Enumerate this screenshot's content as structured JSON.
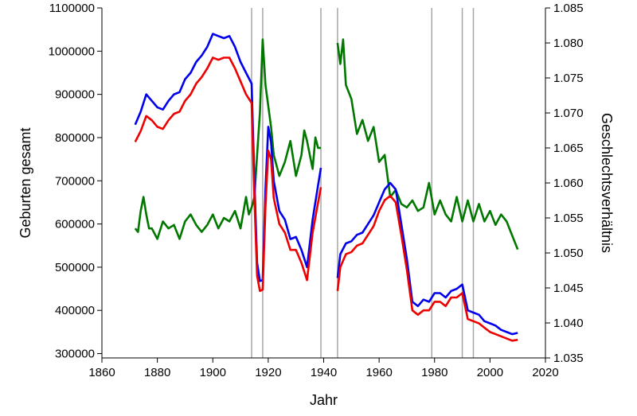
{
  "chart_data": {
    "type": "line",
    "title": "",
    "xlabel": "Jahr",
    "ylabel_left": "Geburten gesamt",
    "ylabel_right": "Geschlechtsverhältnis",
    "xlim": [
      1860,
      2020
    ],
    "ylim_left": [
      290000,
      1100000
    ],
    "ylim_right": [
      1.035,
      1.085
    ],
    "x_ticks": [
      "1860",
      "1880",
      "1900",
      "1920",
      "1940",
      "1960",
      "1980",
      "2000",
      "2020"
    ],
    "y_ticks_left": [
      "300000",
      "400000",
      "500000",
      "600000",
      "700000",
      "800000",
      "900000",
      "1000000",
      "1100000"
    ],
    "y_ticks_right": [
      "1.035",
      "1.040",
      "1.045",
      "1.050",
      "1.055",
      "1.060",
      "1.065",
      "1.070",
      "1.075",
      "1.080",
      "1.085"
    ],
    "vertical_lines": [
      1914,
      1918,
      1939,
      1945,
      1979,
      1990,
      1994
    ],
    "grid": false,
    "legend": "none",
    "colors": {
      "male": "#0000ee",
      "female": "#ee0000",
      "ratio": "#007800",
      "reference": "#a6a6a6"
    },
    "series": [
      {
        "axis": "left",
        "color": "#0000ee",
        "x": [
          1872,
          1874,
          1876,
          1878,
          1880,
          1882,
          1884,
          1886,
          1888,
          1890,
          1892,
          1894,
          1896,
          1898,
          1900,
          1902,
          1904,
          1906,
          1908,
          1910,
          1912,
          1914,
          1915,
          1916,
          1917,
          1918,
          1919,
          1920,
          1921,
          1922,
          1924,
          1926,
          1928,
          1930,
          1932,
          1934,
          1936,
          1938,
          1939,
          1945,
          1946,
          1948,
          1950,
          1952,
          1954,
          1956,
          1958,
          1960,
          1962,
          1964,
          1966,
          1968,
          1970,
          1972,
          1974,
          1976,
          1978,
          1980,
          1982,
          1984,
          1986,
          1988,
          1990,
          1992,
          1994,
          1996,
          1998,
          2000,
          2002,
          2004,
          2006,
          2008,
          2010
        ],
        "values": [
          830000,
          860000,
          900000,
          885000,
          870000,
          865000,
          885000,
          900000,
          905000,
          935000,
          950000,
          975000,
          990000,
          1010000,
          1040000,
          1035000,
          1030000,
          1035000,
          1010000,
          975000,
          950000,
          925000,
          700000,
          510000,
          468000,
          470000,
          680000,
          825000,
          790000,
          700000,
          630000,
          610000,
          565000,
          570000,
          540000,
          500000,
          610000,
          690000,
          730000,
          475000,
          530000,
          555000,
          560000,
          575000,
          580000,
          600000,
          620000,
          650000,
          680000,
          695000,
          680000,
          600000,
          520000,
          420000,
          410000,
          425000,
          420000,
          440000,
          440000,
          430000,
          445000,
          450000,
          460000,
          400000,
          395000,
          390000,
          375000,
          370000,
          365000,
          355000,
          350000,
          345000,
          348000
        ]
      },
      {
        "axis": "left",
        "color": "#ee0000",
        "x": [
          1872,
          1874,
          1876,
          1878,
          1880,
          1882,
          1884,
          1886,
          1888,
          1890,
          1892,
          1894,
          1896,
          1898,
          1900,
          1902,
          1904,
          1906,
          1908,
          1910,
          1912,
          1914,
          1915,
          1916,
          1917,
          1918,
          1919,
          1920,
          1921,
          1922,
          1924,
          1926,
          1928,
          1930,
          1932,
          1934,
          1936,
          1938,
          1939,
          1945,
          1946,
          1948,
          1950,
          1952,
          1954,
          1956,
          1958,
          1960,
          1962,
          1964,
          1966,
          1968,
          1970,
          1972,
          1974,
          1976,
          1978,
          1980,
          1982,
          1984,
          1986,
          1988,
          1990,
          1992,
          1994,
          1996,
          1998,
          2000,
          2002,
          2004,
          2006,
          2008,
          2010
        ],
        "values": [
          790000,
          815000,
          850000,
          840000,
          825000,
          820000,
          840000,
          855000,
          860000,
          885000,
          900000,
          925000,
          940000,
          960000,
          985000,
          980000,
          985000,
          985000,
          960000,
          930000,
          900000,
          880000,
          660000,
          480000,
          445000,
          448000,
          640000,
          770000,
          750000,
          660000,
          600000,
          580000,
          540000,
          540000,
          510000,
          470000,
          580000,
          650000,
          685000,
          445000,
          500000,
          530000,
          535000,
          550000,
          555000,
          575000,
          595000,
          630000,
          655000,
          665000,
          650000,
          575000,
          495000,
          400000,
          390000,
          400000,
          400000,
          420000,
          420000,
          410000,
          430000,
          430000,
          440000,
          380000,
          375000,
          370000,
          360000,
          350000,
          345000,
          340000,
          335000,
          330000,
          332000
        ]
      },
      {
        "axis": "right",
        "color": "#007800",
        "x": [
          1872,
          1873,
          1874,
          1875,
          1876,
          1877,
          1878,
          1880,
          1882,
          1884,
          1886,
          1888,
          1890,
          1892,
          1894,
          1896,
          1898,
          1900,
          1902,
          1904,
          1906,
          1908,
          1910,
          1912,
          1913,
          1914,
          1915,
          1916,
          1917,
          1918,
          1919,
          1920,
          1921,
          1922,
          1924,
          1926,
          1928,
          1930,
          1932,
          1933,
          1934,
          1936,
          1937,
          1938,
          1939,
          1945,
          1946,
          1947,
          1948,
          1950,
          1952,
          1954,
          1956,
          1958,
          1960,
          1962,
          1964,
          1966,
          1968,
          1970,
          1972,
          1974,
          1976,
          1978,
          1980,
          1982,
          1984,
          1986,
          1988,
          1990,
          1992,
          1994,
          1996,
          1998,
          2000,
          2002,
          2004,
          2006,
          2008,
          2010
        ],
        "values": [
          1.0535,
          1.053,
          1.056,
          1.058,
          1.0555,
          1.0535,
          1.0535,
          1.052,
          1.0545,
          1.0535,
          1.054,
          1.052,
          1.0545,
          1.0555,
          1.054,
          1.053,
          1.054,
          1.0555,
          1.0535,
          1.055,
          1.0545,
          1.056,
          1.0535,
          1.058,
          1.0555,
          1.0565,
          1.058,
          1.064,
          1.07,
          1.0805,
          1.074,
          1.071,
          1.068,
          1.064,
          1.061,
          1.063,
          1.066,
          1.061,
          1.064,
          1.0675,
          1.066,
          1.062,
          1.0665,
          1.065,
          1.065,
          1.08,
          1.077,
          1.0805,
          1.074,
          1.072,
          1.067,
          1.069,
          1.066,
          1.068,
          1.063,
          1.064,
          1.058,
          1.059,
          1.057,
          1.0565,
          1.0575,
          1.056,
          1.0565,
          1.06,
          1.0555,
          1.0575,
          1.0555,
          1.0545,
          1.058,
          1.0545,
          1.0575,
          1.0545,
          1.057,
          1.0545,
          1.056,
          1.054,
          1.0555,
          1.0545,
          1.0525,
          1.0505
        ]
      }
    ]
  }
}
